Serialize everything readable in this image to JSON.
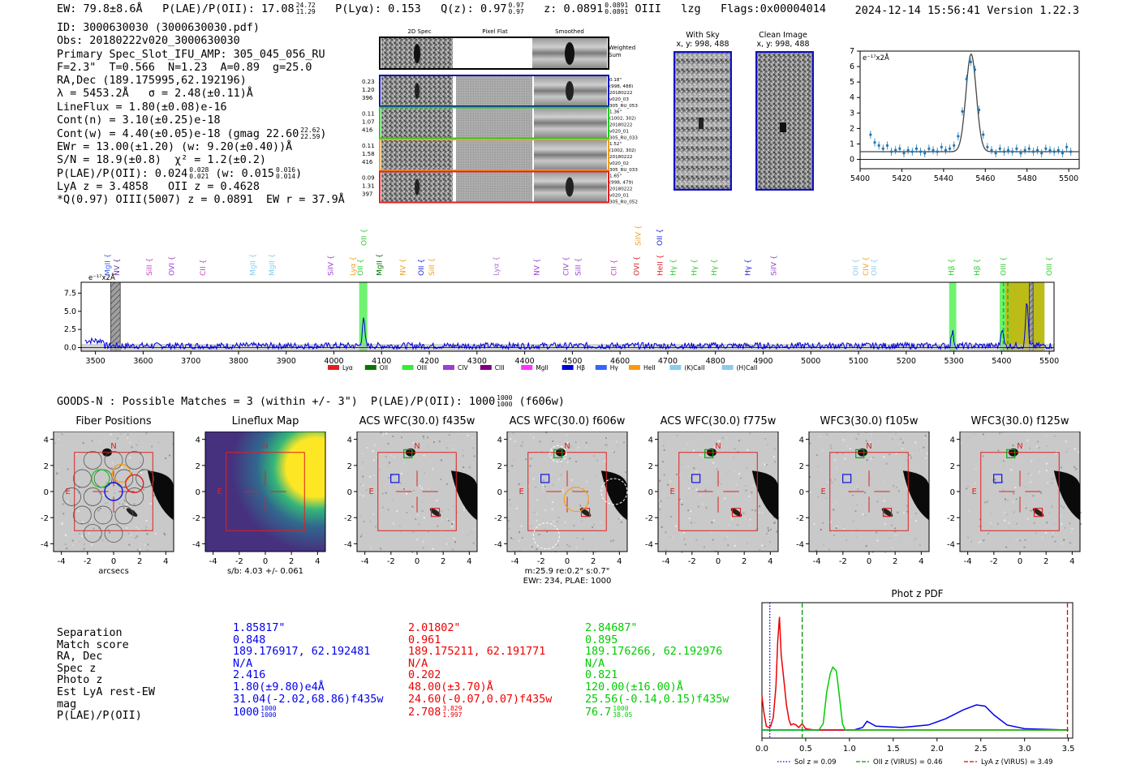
{
  "header": {
    "ew": "EW: 79.8±8.6Å",
    "plae_label": "P(LAE)/P(OII): 17.08",
    "plae_hi": "24.72",
    "plae_lo": "11.29",
    "plya": "P(Lyα): 0.153",
    "qz_label": "Q(z): 0.97",
    "qz_hi": "0.97",
    "qz_lo": "0.97",
    "z_label": "z: 0.0891",
    "z_hi": "0.0891",
    "z_lo": "0.0891",
    "line": "OIII",
    "tag": "lzg",
    "flags": "Flags:0x00004014",
    "timestamp": "2024-12-14 15:56:41",
    "version": "Version 1.22.3"
  },
  "info": {
    "lines": [
      "ID: 3000630030 (3000630030.pdf)",
      "Obs: 20180222v020_3000630030",
      "Primary Spec_Slot_IFU_AMP: 305_045_056_RU",
      "F=2.3\"  T=0.566  N=1.23  A=0.89  g=25.0",
      "RA,Dec (189.175995,62.192196)",
      "λ = 5453.2Å   σ = 2.48(±0.11)Å",
      "LineFlux = 1.80(±0.08)e-16",
      "Cont(n) = 3.10(±0.25)e-18"
    ],
    "contw": "Cont(w) = 4.40(±0.05)e-18 (gmag 22.60",
    "contw_hi": "22.62",
    "contw_lo": "22.59",
    "ewr": "EWr = 13.00(±1.20) (w: 9.20(±0.40))Å",
    "sn": "S/N = 18.9(±0.8)  χ² = 1.2(±0.2)",
    "plae_a": "P(LAE)/P(OII): 0.024",
    "plae_a_hi": "0.028",
    "plae_a_lo": "0.021",
    "plae_b": "(w: 0.015",
    "plae_b_hi": "0.016",
    "plae_b_lo": "0.014",
    "plae_b_end": ")",
    "lya": "LyA z = 3.4858   OII z = 0.4628",
    "q": "*Q(0.97) OIII(5007) z = 0.0891  EW r = 37.9Å"
  },
  "fiber_panel": {
    "col_titles": [
      "2D Spec",
      "Pixel Flat",
      "Smoothed"
    ],
    "weighted_sum": "Weighted\nSum",
    "rows": [
      {
        "left": [
          "0.23",
          "1.20",
          "396"
        ],
        "right": [
          "0.18\"",
          "(998, 488)",
          "20180222",
          "v020_03",
          "305_RU_053"
        ],
        "color": "#1010c0"
      },
      {
        "left": [
          "0.11",
          "1.07",
          "416"
        ],
        "right": [
          "1.36\"",
          "(1002, 302)",
          "20180222",
          "v020_01",
          "305_RU_033"
        ],
        "color": "#22cc22"
      },
      {
        "left": [
          "0.11",
          "1.58",
          "416"
        ],
        "right": [
          "1.52\"",
          "(1002, 302)",
          "20180222",
          "v020_02",
          "305_RU_033"
        ],
        "color": "#f0a020"
      },
      {
        "left": [
          "0.09",
          "1.31",
          "397"
        ],
        "right": [
          "1.65\"",
          "(998, 479)",
          "20180222",
          "v020_01",
          "305_RU_052"
        ],
        "color": "#e02020"
      }
    ],
    "with_sky": "With Sky",
    "with_sky_xy": "x, y: 998, 488",
    "clean": "Clean Image",
    "clean_xy": "x, y: 998, 488"
  },
  "zoom_chart": {
    "type": "line",
    "ylabel_unit": "e⁻¹⁷x2Å",
    "xlim": [
      5400,
      5505
    ],
    "ylim": [
      -0.6,
      7.0
    ],
    "xticks": [
      5400,
      5420,
      5440,
      5460,
      5480,
      5500
    ],
    "yticks": [
      0,
      1,
      2,
      3,
      4,
      5,
      6,
      7
    ],
    "gauss": {
      "center": 5453.2,
      "sigma": 2.48,
      "amp": 6.3,
      "cont": 0.5
    },
    "points": [
      [
        5405,
        1.6
      ],
      [
        5407,
        1.1
      ],
      [
        5409,
        0.9
      ],
      [
        5411,
        0.7
      ],
      [
        5413,
        0.9
      ],
      [
        5415,
        0.5
      ],
      [
        5417,
        0.6
      ],
      [
        5419,
        0.7
      ],
      [
        5421,
        0.4
      ],
      [
        5423,
        0.6
      ],
      [
        5425,
        0.5
      ],
      [
        5427,
        0.7
      ],
      [
        5429,
        0.5
      ],
      [
        5431,
        0.4
      ],
      [
        5433,
        0.7
      ],
      [
        5435,
        0.6
      ],
      [
        5437,
        0.5
      ],
      [
        5439,
        0.8
      ],
      [
        5441,
        0.6
      ],
      [
        5443,
        0.7
      ],
      [
        5445,
        0.9
      ],
      [
        5447,
        1.5
      ],
      [
        5449,
        3.1
      ],
      [
        5451,
        5.2
      ],
      [
        5453,
        6.3
      ],
      [
        5455,
        5.8
      ],
      [
        5457,
        3.2
      ],
      [
        5459,
        1.6
      ],
      [
        5461,
        0.8
      ],
      [
        5463,
        0.6
      ],
      [
        5465,
        0.4
      ],
      [
        5467,
        0.7
      ],
      [
        5469,
        0.5
      ],
      [
        5471,
        0.6
      ],
      [
        5473,
        0.5
      ],
      [
        5475,
        0.7
      ],
      [
        5477,
        0.4
      ],
      [
        5479,
        0.6
      ],
      [
        5481,
        0.7
      ],
      [
        5483,
        0.5
      ],
      [
        5485,
        0.6
      ],
      [
        5487,
        0.4
      ],
      [
        5489,
        0.7
      ],
      [
        5491,
        0.6
      ],
      [
        5493,
        0.5
      ],
      [
        5495,
        0.6
      ],
      [
        5497,
        0.4
      ],
      [
        5499,
        0.8
      ],
      [
        5501,
        0.5
      ]
    ]
  },
  "full_spec": {
    "type": "line",
    "ylabel_unit": "e⁻¹⁷x2Å",
    "xlim": [
      3470,
      5510
    ],
    "ylim": [
      -0.5,
      9.0
    ],
    "xticks": [
      3500,
      3600,
      3700,
      3800,
      3900,
      4000,
      4100,
      4200,
      4300,
      4400,
      4500,
      4600,
      4700,
      4800,
      4900,
      5000,
      5100,
      5200,
      5300,
      5400,
      5500
    ],
    "yticks": [
      0.0,
      2.5,
      5.0,
      7.5
    ],
    "peaks": [
      {
        "w": 4062,
        "a": 4.0,
        "s": 2.5
      },
      {
        "w": 5297,
        "a": 1.9,
        "s": 2.5
      },
      {
        "w": 5401,
        "a": 2.6,
        "s": 2.5
      },
      {
        "w": 5453,
        "a": 6.3,
        "s": 2.5
      }
    ],
    "bands": [
      {
        "x0": 4053,
        "x1": 4070,
        "color": "#33ee33",
        "alpha": 0.7
      },
      {
        "x0": 5290,
        "x1": 5305,
        "color": "#33ee33",
        "alpha": 0.7
      },
      {
        "x0": 5396,
        "x1": 5408,
        "color": "#33ee33",
        "alpha": 0.7
      },
      {
        "x0": 5408,
        "x1": 5490,
        "color": "#b5b500",
        "alpha": 0.9
      }
    ],
    "hatched": [
      {
        "x0": 3532,
        "x1": 3552
      },
      {
        "x0": 5458,
        "x1": 5466
      }
    ],
    "dashed_lines": [
      {
        "x": 5404,
        "color": "#20c020"
      },
      {
        "x": 5413,
        "color": "#20c020"
      }
    ],
    "lines": [
      {
        "label": "MgII",
        "w": 3525,
        "color": "#4060e0"
      },
      {
        "label": "NV",
        "w": 3545,
        "color": "#7030a0"
      },
      {
        "label": "SiII",
        "w": 3613,
        "color": "#c040c0"
      },
      {
        "label": "OVI",
        "w": 3660,
        "color": "#9a40d0"
      },
      {
        "label": "CII",
        "w": 3725,
        "color": "#cc33cc"
      },
      {
        "label": "MgII",
        "w": 3830,
        "color": "#88ccee"
      },
      {
        "label": "MgII",
        "w": 3870,
        "color": "#88ccee"
      },
      {
        "label": "SiIV",
        "w": 3993,
        "color": "#9a40d0"
      },
      {
        "label": "Lyα",
        "w": 4040,
        "color": "#f0a020"
      },
      {
        "label": "OII",
        "w": 4055,
        "color": "#2bcc2b"
      },
      {
        "label": "OII",
        "w": 4063,
        "color": "#2bcc2b",
        "raised": true
      },
      {
        "label": "MgII",
        "w": 4095,
        "color": "#007700"
      },
      {
        "label": "NV",
        "w": 4145,
        "color": "#f0a020"
      },
      {
        "label": "OII",
        "w": 4183,
        "color": "#2020dd"
      },
      {
        "label": "SiII",
        "w": 4205,
        "color": "#f0a020"
      },
      {
        "label": "Lyα",
        "w": 4340,
        "color": "#b070d0"
      },
      {
        "label": "NV",
        "w": 4425,
        "color": "#9a40d0"
      },
      {
        "label": "CIV",
        "w": 4487,
        "color": "#9a40d0"
      },
      {
        "label": "SiII",
        "w": 4512,
        "color": "#9a40d0"
      },
      {
        "label": "CII",
        "w": 4587,
        "color": "#cc33cc"
      },
      {
        "label": "OVI",
        "w": 4635,
        "color": "#e02020"
      },
      {
        "label": "SiIV",
        "w": 4638,
        "color": "#f0a020",
        "raised": true
      },
      {
        "label": "OII",
        "w": 4683,
        "color": "#2020dd",
        "raised": true
      },
      {
        "label": "HeII",
        "w": 4684,
        "color": "#e02020"
      },
      {
        "label": "Hγ",
        "w": 4711,
        "color": "#2bcc2b"
      },
      {
        "label": "Hγ",
        "w": 4755,
        "color": "#2bcc2b"
      },
      {
        "label": "Hγ",
        "w": 4797,
        "color": "#2bcc2b"
      },
      {
        "label": "Hγ",
        "w": 4868,
        "color": "#2020dd"
      },
      {
        "label": "SiIV",
        "w": 4922,
        "color": "#9a40d0"
      },
      {
        "label": "OII",
        "w": 5094,
        "color": "#88ccee"
      },
      {
        "label": "CIV",
        "w": 5115,
        "color": "#f0a020"
      },
      {
        "label": "OII",
        "w": 5132,
        "color": "#88ccee"
      },
      {
        "label": "Hβ",
        "w": 5295,
        "color": "#2bcc2b"
      },
      {
        "label": "Hβ",
        "w": 5348,
        "color": "#2bcc2b"
      },
      {
        "label": "OIII",
        "w": 5404,
        "color": "#2bcc2b"
      },
      {
        "label": "OIII",
        "w": 5500,
        "color": "#2bcc2b"
      }
    ],
    "legend": [
      {
        "label": "Lyα",
        "color": "#e02020"
      },
      {
        "label": "OII",
        "color": "#007700"
      },
      {
        "label": "OIII",
        "color": "#33ee33"
      },
      {
        "label": "CIV",
        "color": "#9a40d0"
      },
      {
        "label": "CIII",
        "color": "#800080"
      },
      {
        "label": "MgII",
        "color": "#ff33ff"
      },
      {
        "label": "Hβ",
        "color": "#0000dd"
      },
      {
        "label": "Hγ",
        "color": "#3366ff"
      },
      {
        "label": "HeII",
        "color": "#ff9900"
      },
      {
        "label": "(K)CaII",
        "color": "#88ccee"
      },
      {
        "label": "(H)CaII",
        "color": "#88ccee"
      }
    ]
  },
  "match_header": {
    "text": "GOODS-N : Possible Matches = 3 (within +/- 3\")  P(LAE)/P(OII): 1000",
    "hi": "1000",
    "lo": "1000",
    "suffix": "(f606w)"
  },
  "cutouts": {
    "titles": [
      "Fiber Positions",
      "Lineflux Map",
      "ACS WFC(30.0) f435w",
      "ACS WFC(30.0) f606w",
      "ACS WFC(30.0) f775w",
      "WFC3(30.0) f105w",
      "WFC3(30.0) f125w"
    ],
    "ticks": [
      -4,
      -2,
      0,
      2,
      4
    ],
    "compass_n": "N",
    "compass_e": "E",
    "xlabel_first": "arcsecs",
    "xlabel_map": "s/b: 4.03 +/- 0.061",
    "f606w_note1": "m:25.9  re:0.2\"  s:0.7\"",
    "f606w_note2": "EWr: 234, PLAE: 1000"
  },
  "match_table": {
    "labels": [
      "Separation",
      "Match score",
      "RA, Dec",
      "Spec z",
      "Photo z",
      "Est LyA rest-EW",
      "mag",
      "P(LAE)/P(OII)"
    ],
    "columns": [
      {
        "color": "#0000ee",
        "values": [
          "1.85817\"",
          "0.848",
          "189.176917, 62.192481",
          "N/A",
          "2.416",
          "1.80(±9.80)e4Å",
          "31.04(-2.02,68.86)f435w",
          "1000"
        ],
        "plae_hi": "1000",
        "plae_lo": "1000"
      },
      {
        "color": "#ee0000",
        "values": [
          "2.01802\"",
          "0.961",
          "189.175211, 62.191771",
          "N/A",
          "0.202",
          "48.00(±3.70)Å",
          "24.60(-0.07,0.07)f435w",
          "2.708"
        ],
        "plae_hi": "3.829",
        "plae_lo": "1.997"
      },
      {
        "color": "#00cc00",
        "values": [
          "2.84687\"",
          "0.895",
          "189.176266, 62.192976",
          "N/A",
          "0.821",
          "120.00(±16.00)Å",
          "25.56(-0.14,0.15)f435w",
          "76.7"
        ],
        "plae_hi": "1000",
        "plae_lo": "38.05"
      }
    ]
  },
  "photz_chart": {
    "type": "line",
    "title": "Phot z PDF",
    "xlim": [
      0.0,
      3.55
    ],
    "xticks": [
      0.0,
      0.5,
      1.0,
      1.5,
      2.0,
      2.5,
      3.0,
      3.5
    ],
    "vlines": [
      {
        "x": 0.09,
        "color": "#0000cc",
        "style": "dotted",
        "label": "Sol z = 0.09"
      },
      {
        "x": 0.46,
        "color": "#009900",
        "style": "dashed",
        "label": "OII z (VIRUS) = 0.46"
      },
      {
        "x": 3.49,
        "color": "#dd0000",
        "style": "dashed",
        "label": "LyA z (VIRUS) = 3.49"
      }
    ],
    "series": [
      {
        "name": "blue",
        "color": "#0000ee",
        "points": [
          [
            0,
            0
          ],
          [
            1.05,
            0.0
          ],
          [
            1.15,
            0.02
          ],
          [
            1.2,
            0.07
          ],
          [
            1.3,
            0.03
          ],
          [
            1.6,
            0.02
          ],
          [
            1.9,
            0.04
          ],
          [
            2.1,
            0.09
          ],
          [
            2.3,
            0.16
          ],
          [
            2.45,
            0.2
          ],
          [
            2.55,
            0.19
          ],
          [
            2.65,
            0.12
          ],
          [
            2.8,
            0.04
          ],
          [
            3.0,
            0.01
          ],
          [
            3.5,
            0.0
          ]
        ]
      },
      {
        "name": "red",
        "color": "#ee0000",
        "points": [
          [
            0.0,
            0.27
          ],
          [
            0.02,
            0.15
          ],
          [
            0.05,
            0.03
          ],
          [
            0.08,
            0.02
          ],
          [
            0.1,
            0.03
          ],
          [
            0.13,
            0.1
          ],
          [
            0.16,
            0.35
          ],
          [
            0.18,
            0.7
          ],
          [
            0.2,
            0.9
          ],
          [
            0.22,
            0.6
          ],
          [
            0.25,
            0.4
          ],
          [
            0.28,
            0.2
          ],
          [
            0.31,
            0.08
          ],
          [
            0.33,
            0.04
          ],
          [
            0.36,
            0.05
          ],
          [
            0.39,
            0.04
          ],
          [
            0.42,
            0.02
          ],
          [
            0.46,
            0.05
          ],
          [
            0.5,
            0.01
          ],
          [
            0.6,
            0.0
          ],
          [
            3.5,
            0.0
          ]
        ]
      },
      {
        "name": "green",
        "color": "#00cc00",
        "points": [
          [
            0.0,
            0.0
          ],
          [
            0.65,
            0.0
          ],
          [
            0.7,
            0.05
          ],
          [
            0.74,
            0.3
          ],
          [
            0.78,
            0.45
          ],
          [
            0.81,
            0.5
          ],
          [
            0.85,
            0.47
          ],
          [
            0.88,
            0.3
          ],
          [
            0.92,
            0.05
          ],
          [
            0.95,
            0.0
          ],
          [
            3.5,
            0.0
          ]
        ]
      }
    ]
  },
  "colors": {
    "blue_box": "#1010c0",
    "green_box": "#22cc22",
    "orange_box": "#f0a020",
    "red_box": "#e02020"
  }
}
